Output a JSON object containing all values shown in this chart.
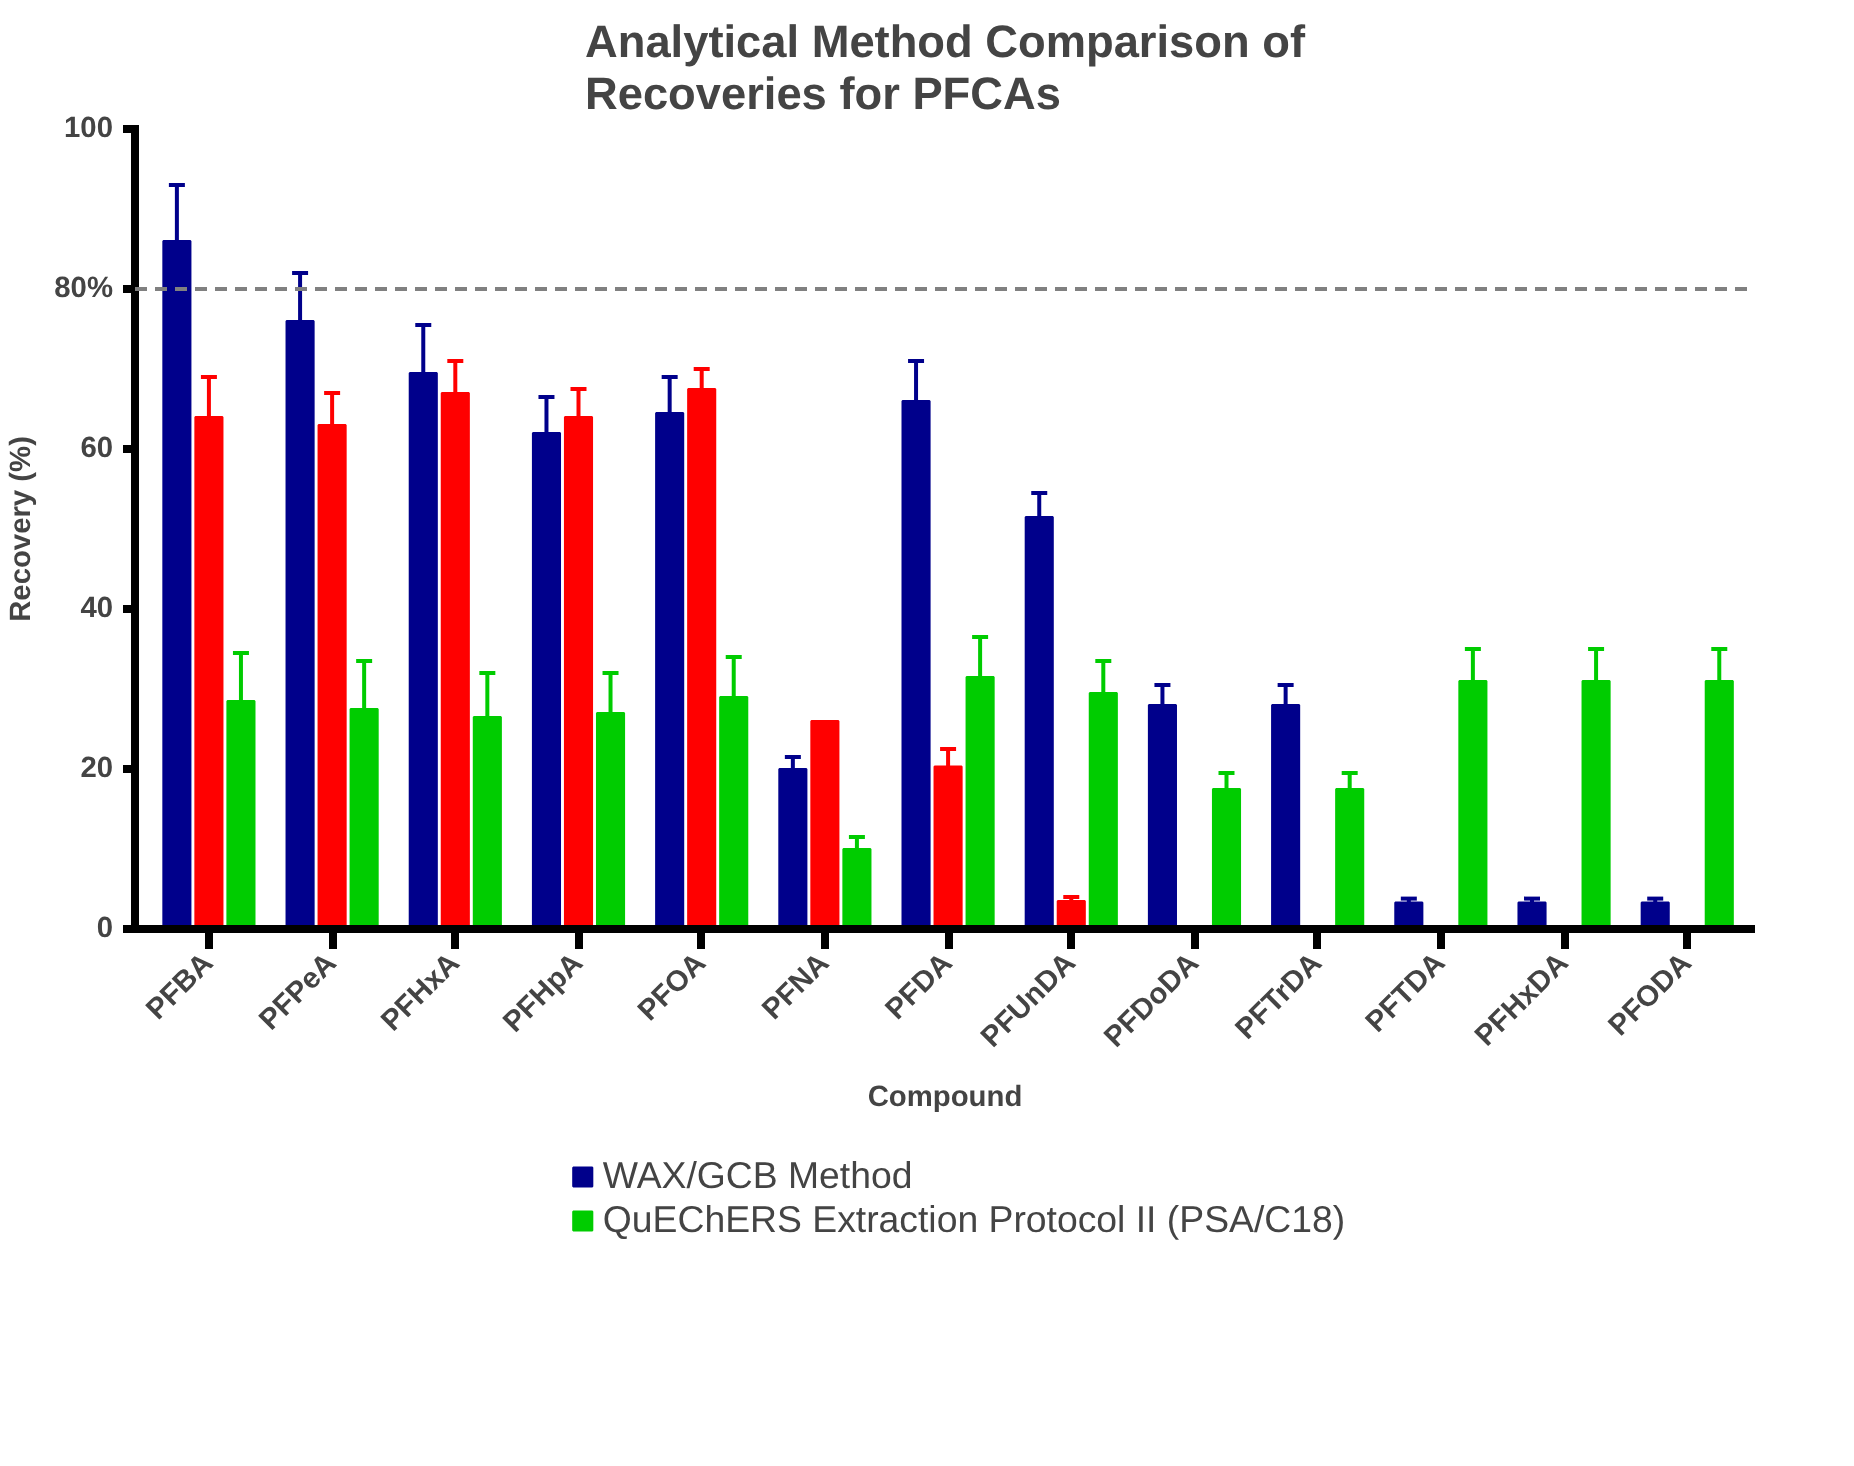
{
  "chart_data": {
    "type": "bar",
    "title": "Analytical Method Comparison of\nRecoveries for PFCAs",
    "xlabel": "Compound",
    "ylabel": "Recovery (%)",
    "categories": [
      "PFBA",
      "PFPeA",
      "PFHxA",
      "PFHpA",
      "PFOA",
      "PFNA",
      "PFDA",
      "PFUnDA",
      "PFDoDA",
      "PFTrDA",
      "PFTDA",
      "PFHxDA",
      "PFODA"
    ],
    "series": [
      {
        "name": "WAX/GCB Method",
        "color": "#00008b",
        "values": [
          86,
          76,
          69.5,
          62,
          64.5,
          20,
          66,
          51.5,
          28,
          28,
          3.3,
          3.3,
          3.3
        ],
        "errors": [
          [
            86,
            93
          ],
          [
            76,
            82
          ],
          [
            69.5,
            75.5
          ],
          [
            62,
            66.5
          ],
          [
            64.5,
            69
          ],
          [
            20,
            21.5
          ],
          [
            66,
            71
          ],
          [
            51.5,
            54.5
          ],
          [
            28,
            30.5
          ],
          [
            28,
            30.5
          ],
          [
            3.3,
            3.8
          ],
          [
            3.3,
            3.8
          ],
          [
            3.3,
            3.8
          ]
        ]
      },
      {
        "color": "#ff0000",
        "values": [
          64,
          63,
          67,
          64,
          67.5,
          26,
          20.3,
          3.5,
          null,
          null,
          null,
          null,
          null
        ],
        "errors": [
          [
            64,
            69
          ],
          [
            63,
            67
          ],
          [
            67,
            71
          ],
          [
            64,
            67.5
          ],
          [
            67.5,
            70
          ],
          null,
          [
            20.3,
            22.5
          ],
          [
            3.5,
            4
          ],
          null,
          null,
          null,
          null,
          null
        ]
      },
      {
        "name": "QuEChERS Extraction Protocol II (PSA/C18)",
        "color": "#00cc00",
        "values": [
          28.5,
          27.5,
          26.5,
          27,
          29,
          10,
          31.5,
          29.5,
          17.5,
          17.5,
          31,
          31,
          31
        ],
        "errors": [
          [
            28.5,
            34.5
          ],
          [
            27.5,
            33.5
          ],
          [
            26.5,
            32
          ],
          [
            27,
            32
          ],
          [
            29,
            34
          ],
          [
            10,
            11.5
          ],
          [
            31.5,
            36.5
          ],
          [
            29.5,
            33.5
          ],
          [
            17.5,
            19.5
          ],
          [
            17.5,
            19.5
          ],
          [
            31,
            35
          ],
          [
            31,
            35
          ],
          [
            31,
            35
          ]
        ]
      }
    ],
    "ylim": [
      0,
      100
    ],
    "yticks": [
      0,
      20,
      40,
      60,
      {
        "value": 80,
        "label": "80%"
      },
      100
    ],
    "ref_lines": [
      {
        "axis": "y",
        "value": 80,
        "color": "#808080",
        "line_style": "dashed"
      }
    ],
    "legend": "bottom",
    "grid": false
  }
}
